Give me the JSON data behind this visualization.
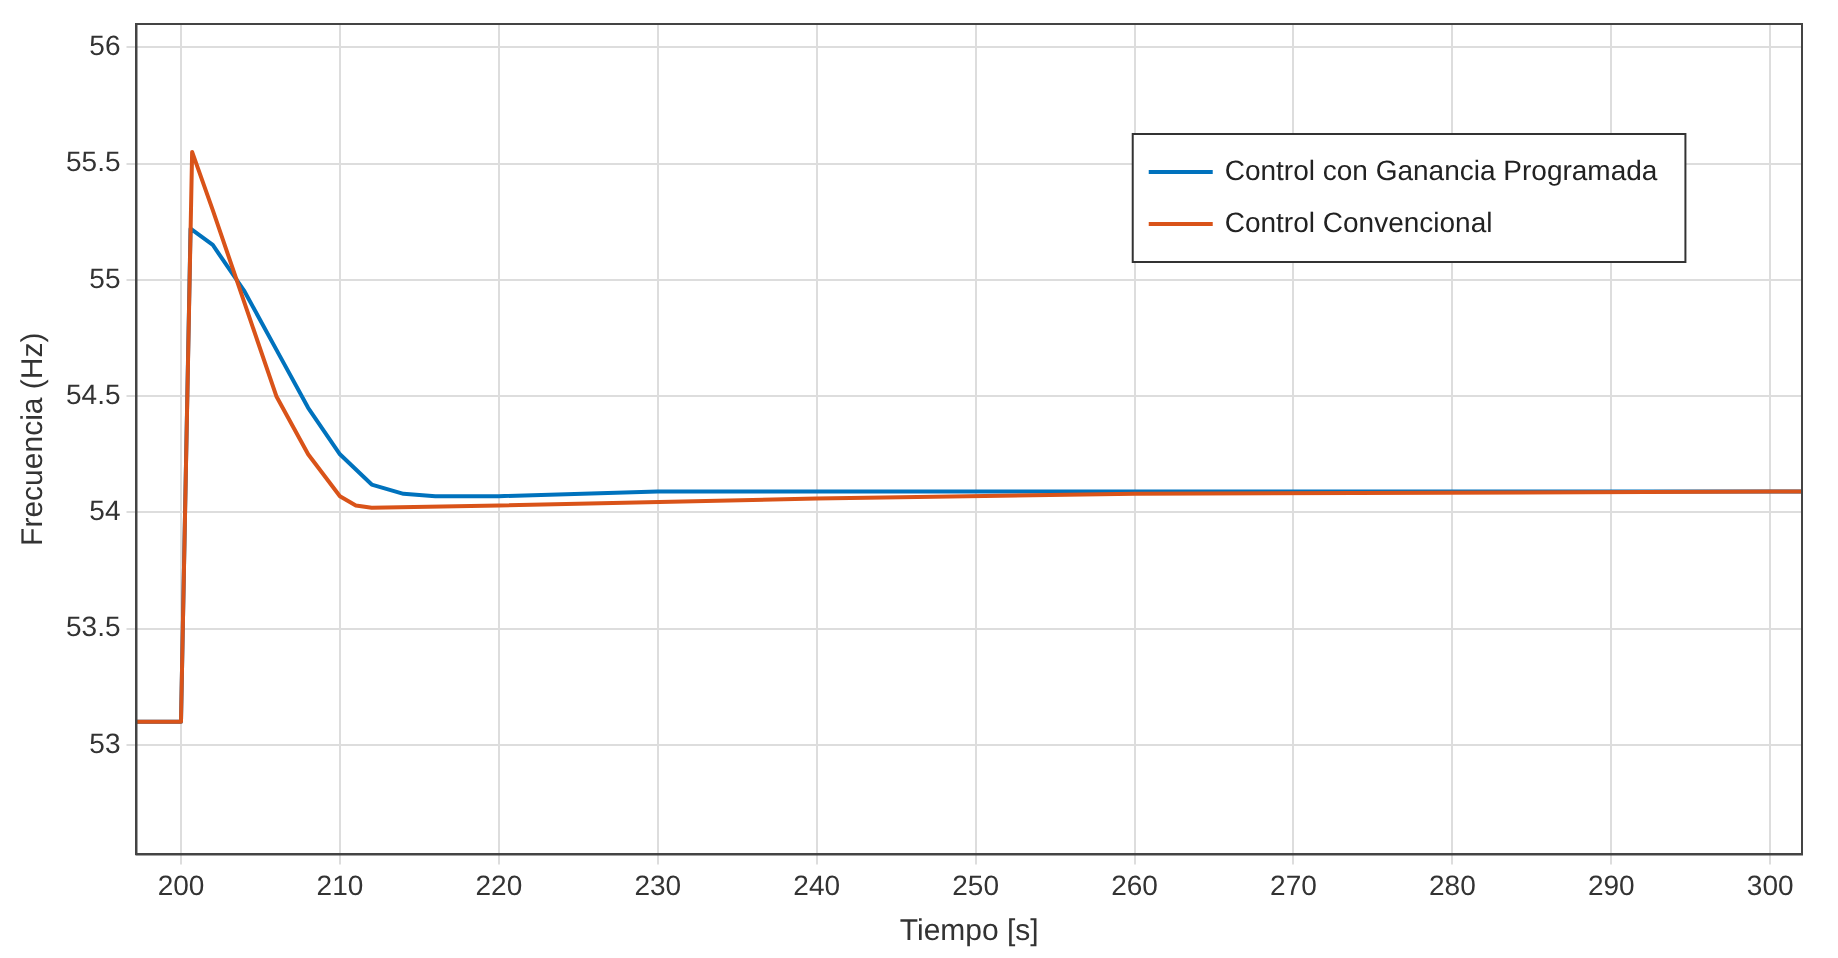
{
  "chart_data": {
    "type": "line",
    "xlabel": "Tiempo [s]",
    "ylabel": "Frecuencia (Hz)",
    "xlim": [
      197.2,
      302
    ],
    "ylim": [
      52.53,
      56.1
    ],
    "xticks": [
      200,
      210,
      220,
      230,
      240,
      250,
      260,
      270,
      280,
      290,
      300
    ],
    "yticks": [
      53,
      53.5,
      54,
      54.5,
      55,
      55.5,
      56
    ],
    "grid": true,
    "legend": "top right",
    "marker": "none",
    "line_style": "solid",
    "series": [
      {
        "name": "Control con Ganancia Programada",
        "color": "#0072bd",
        "x": [
          197.2,
          200,
          200.6,
          202,
          204,
          206,
          208,
          210,
          212,
          214,
          216,
          220,
          230,
          250,
          300,
          302
        ],
        "values": [
          53.1,
          53.1,
          55.22,
          55.15,
          54.95,
          54.7,
          54.45,
          54.25,
          54.12,
          54.08,
          54.07,
          54.07,
          54.09,
          54.09,
          54.09,
          54.09
        ]
      },
      {
        "name": "Control Convencional",
        "color": "#d95319",
        "x": [
          197.2,
          200,
          200.7,
          202,
          204,
          206,
          208,
          210,
          211,
          212,
          220,
          240,
          260,
          300,
          302
        ],
        "values": [
          53.1,
          53.1,
          55.55,
          55.3,
          54.9,
          54.5,
          54.25,
          54.07,
          54.03,
          54.02,
          54.03,
          54.06,
          54.08,
          54.09,
          54.09
        ]
      }
    ]
  }
}
